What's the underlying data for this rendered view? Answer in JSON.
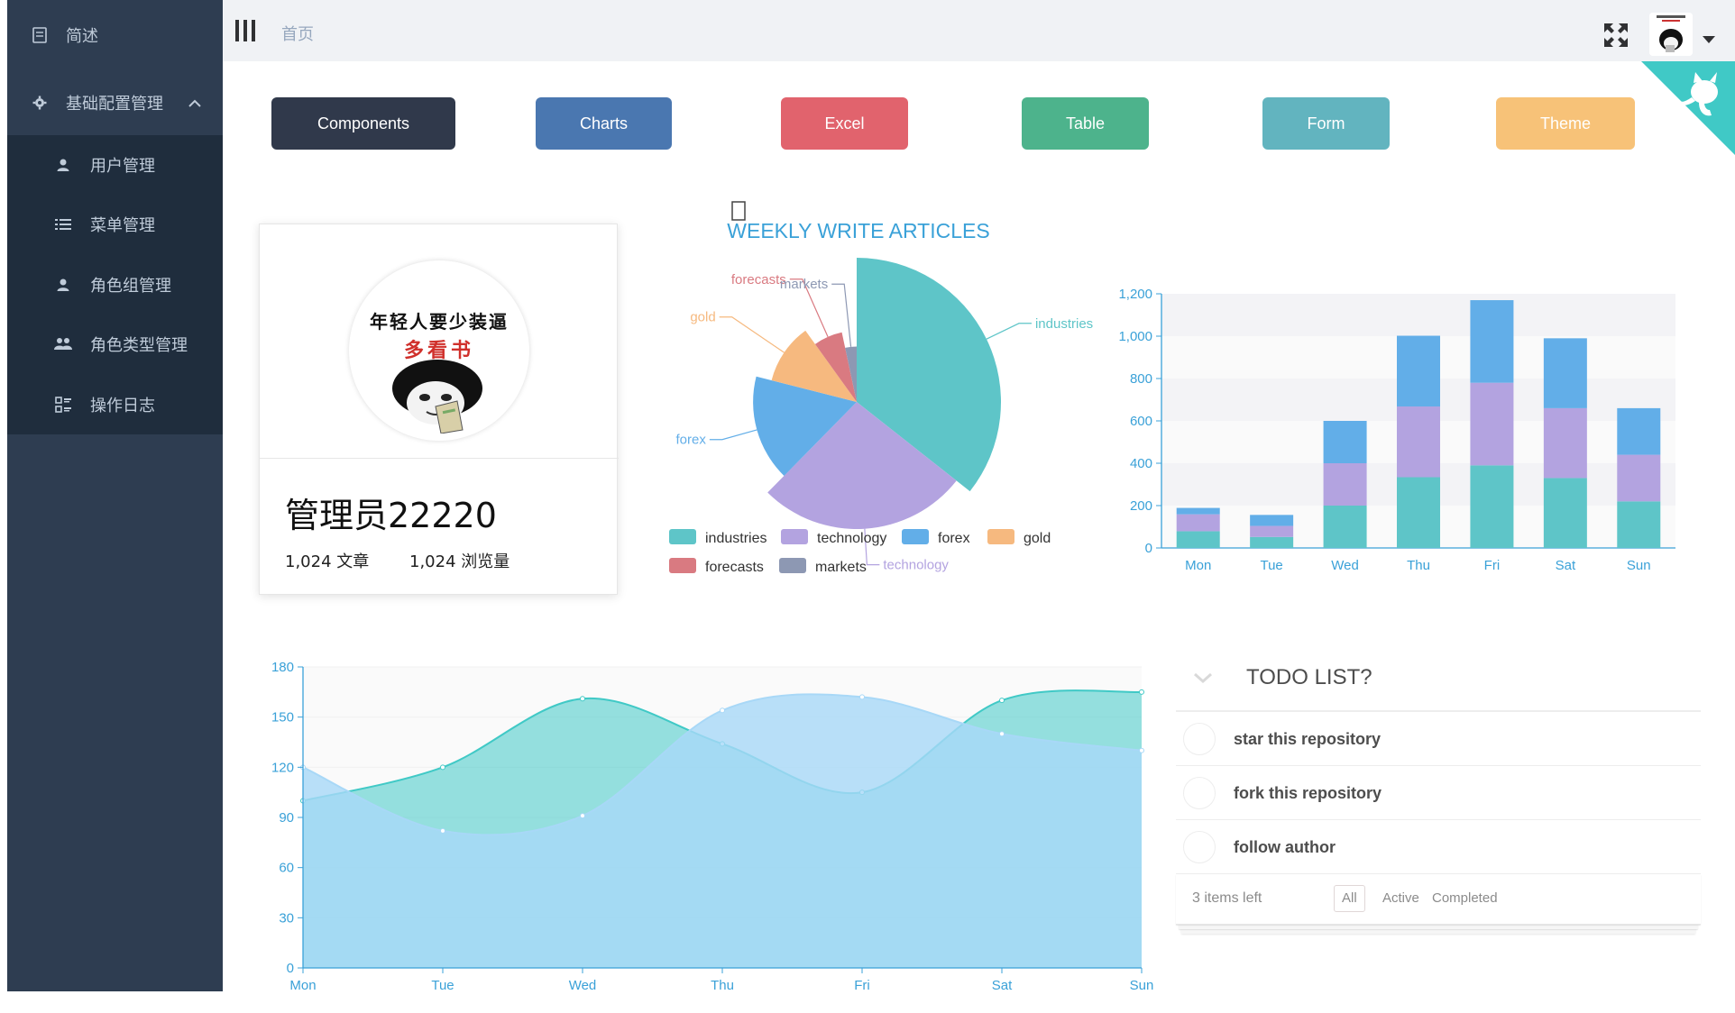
{
  "sidebar": {
    "items": [
      {
        "label": "简述",
        "icon": "document-icon"
      },
      {
        "label": "基础配置管理",
        "icon": "gear-icon",
        "expanded": true
      }
    ],
    "submenu": [
      {
        "label": "用户管理",
        "icon": "user-icon"
      },
      {
        "label": "菜单管理",
        "icon": "list-icon"
      },
      {
        "label": "角色组管理",
        "icon": "user-group-icon"
      },
      {
        "label": "角色类型管理",
        "icon": "people-icon"
      },
      {
        "label": "操作日志",
        "icon": "log-icon"
      }
    ]
  },
  "navbar": {
    "breadcrumb": "首页"
  },
  "buttons": [
    {
      "label": "Components",
      "color": "#30394b"
    },
    {
      "label": "Charts",
      "color": "#4a77b0"
    },
    {
      "label": "Excel",
      "color": "#e1636d"
    },
    {
      "label": "Table",
      "color": "#4db38c"
    },
    {
      "label": "Form",
      "color": "#62b4bf"
    },
    {
      "label": "Theme",
      "color": "#f7c278"
    }
  ],
  "profile": {
    "avatar_text_line1": "年轻人要少装逼",
    "avatar_text_line2": "多看书",
    "name": "管理员22220",
    "articles": "1,024 文章",
    "views": "1,024 浏览量"
  },
  "chart_data": [
    {
      "type": "pie",
      "title": "WEEKLY WRITE ARTICLES",
      "subtype": "rose",
      "slices": [
        {
          "name": "industries",
          "value": 320,
          "color": "#5ec5c8"
        },
        {
          "name": "technology",
          "value": 240,
          "color": "#b3a3e0"
        },
        {
          "name": "forex",
          "value": 149,
          "color": "#62aee8"
        },
        {
          "name": "gold",
          "value": 100,
          "color": "#f6b97f"
        },
        {
          "name": "forecasts",
          "value": 59,
          "color": "#d97a81"
        },
        {
          "name": "markets",
          "value": 30,
          "color": "#8d98b3"
        }
      ],
      "legend": [
        "industries",
        "technology",
        "forex",
        "gold",
        "forecasts",
        "markets"
      ]
    },
    {
      "type": "bar",
      "stacked": true,
      "categories": [
        "Mon",
        "Tue",
        "Wed",
        "Thu",
        "Fri",
        "Sat",
        "Sun"
      ],
      "series": [
        {
          "name": "",
          "color": "#5ec5c8",
          "values": [
            79,
            52,
            200,
            334,
            390,
            330,
            220
          ]
        },
        {
          "name": "",
          "color": "#b3a3e0",
          "values": [
            80,
            52,
            200,
            334,
            390,
            330,
            220
          ]
        },
        {
          "name": "",
          "color": "#62aee8",
          "values": [
            30,
            52,
            200,
            334,
            390,
            330,
            220
          ]
        }
      ],
      "ylim": [
        0,
        1200
      ],
      "yticks": [
        "0",
        "200",
        "400",
        "600",
        "800",
        "1,000",
        "1,200"
      ],
      "grid": true
    },
    {
      "type": "area",
      "categories": [
        "Mon",
        "Tue",
        "Wed",
        "Thu",
        "Fri",
        "Sat",
        "Sun"
      ],
      "series": [
        {
          "name": "",
          "color": "#40c9c6",
          "values": [
            100,
            120,
            161,
            134,
            105,
            160,
            165
          ]
        },
        {
          "name": "",
          "color": "#a8d8f7",
          "values": [
            120,
            82,
            91,
            154,
            162,
            140,
            130
          ]
        }
      ],
      "ylim": [
        0,
        180
      ],
      "yticks": [
        "0",
        "30",
        "60",
        "90",
        "120",
        "150",
        "180"
      ],
      "grid": true
    }
  ],
  "todo": {
    "title": "TODO LIST?",
    "items": [
      "star this repository",
      "fork this repository",
      "follow author"
    ],
    "count": "3 items left",
    "filters": [
      "All",
      "Active",
      "Completed"
    ],
    "selected_filter": "All"
  },
  "colors": {
    "sidebar_bg": "#2e3d51",
    "submenu_bg": "#1f2d3d",
    "navbar_bg": "#f0f2f5",
    "corner": "#40c9c6",
    "axis": "#3aa1d8"
  }
}
